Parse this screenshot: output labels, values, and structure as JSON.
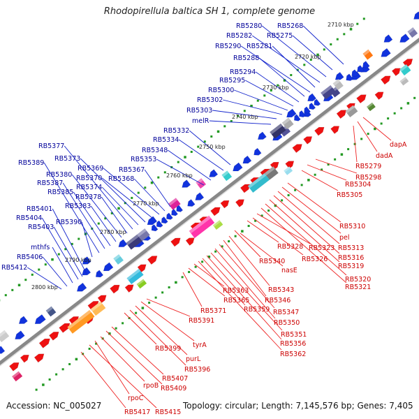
{
  "title": "Rhodopirellula baltica SH 1, complete genome",
  "footer": {
    "accession": "Accession: NC_005027",
    "summary": "Topology: circular; Length: 7,145,576 bp; Genes: 7,405"
  },
  "colors": {
    "reverse_strand": "#1133dd",
    "forward_strand": "#ee1111",
    "backbone": "#888888",
    "ruler_dots": "#229922",
    "forward_label": "#cc0000",
    "reverse_label": "#000099"
  },
  "ticks": [
    "2710 kbp",
    "2720 kbp",
    "2730 kbp",
    "2740 kbp",
    "2750 kbp",
    "2760 kbp",
    "2770 kbp",
    "2780 kbp",
    "2790 kbp",
    "2800 kbp"
  ],
  "reverse_labels": [
    "RB5268",
    "RB5275",
    "RB5280",
    "RB5282",
    "RB5281",
    "RB5290",
    "RB5288",
    "RB5294",
    "RB5295",
    "RB5300",
    "RB5302",
    "RB5303",
    "melR",
    "RB5332",
    "RB5334",
    "RB5348",
    "RB5353",
    "RB5367",
    "RB5368",
    "RB5369",
    "RB5370",
    "RB5373",
    "RB5374",
    "RB5377",
    "RB5378",
    "RB5380",
    "RB5383",
    "RB5385",
    "RB5387",
    "RB5389",
    "RB5390",
    "RB5401",
    "RB5403",
    "RB5404",
    "mthfs",
    "RB5406",
    "RB5412"
  ],
  "forward_labels": [
    "dapA",
    "dadA",
    "RB5279",
    "RB5298",
    "RB5304",
    "RB5305",
    "RB5310",
    "pel",
    "RB5313",
    "RB5316",
    "RB5319",
    "RB5320",
    "RB5321",
    "RB5323",
    "RB5326",
    "RB5328",
    "RB5340",
    "nasE",
    "RB5343",
    "RB5346",
    "RB5347",
    "RB5350",
    "RB5351",
    "RB5356",
    "RB5359",
    "RB5362",
    "RB5363",
    "RB5365",
    "RB5371",
    "RB5391",
    "tyrA",
    "purL",
    "RB5396",
    "RB5399",
    "RB5407",
    "RB5409",
    "rpoB",
    "rpoC",
    "RB5415",
    "RB5417"
  ]
}
